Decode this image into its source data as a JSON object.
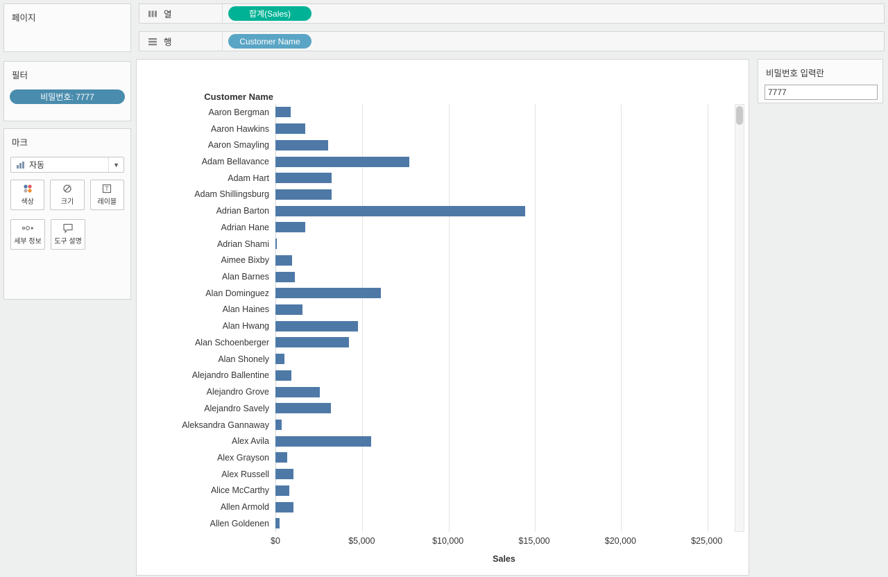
{
  "colors": {
    "measure_pill": "#00b295",
    "dimension_pill": "#5aa5c5",
    "filter_pill": "#4a8cad",
    "bar": "#4e79a7"
  },
  "pages_panel": {
    "title": "페이지"
  },
  "filters_panel": {
    "title": "필터",
    "pill_label": "비밀번호: 7777"
  },
  "marks_panel": {
    "title": "마크",
    "mark_type_label": "자동",
    "buttons": [
      {
        "label": "색상"
      },
      {
        "label": "크기"
      },
      {
        "label": "레이블"
      },
      {
        "label": "세부 정보"
      },
      {
        "label": "도구 설명"
      }
    ]
  },
  "shelves": {
    "columns_label": "열",
    "columns_pill": "합계(Sales)",
    "rows_label": "행",
    "rows_pill": "Customer Name"
  },
  "parameter_panel": {
    "title": "비밀번호 입력란",
    "value": "7777"
  },
  "chart_data": {
    "type": "bar",
    "orientation": "horizontal",
    "title": "Customer Name",
    "xlabel": "Sales",
    "x_ticks": [
      "$0",
      "$5,000",
      "$10,000",
      "$15,000",
      "$20,000",
      "$25,000"
    ],
    "x_tick_values": [
      0,
      5000,
      10000,
      15000,
      20000,
      25000
    ],
    "xlim": [
      0,
      26500
    ],
    "grid": true,
    "categories": [
      "Aaron Bergman",
      "Aaron Hawkins",
      "Aaron Smayling",
      "Adam Bellavance",
      "Adam Hart",
      "Adam Shillingsburg",
      "Adrian Barton",
      "Adrian Hane",
      "Adrian Shami",
      "Aimee Bixby",
      "Alan Barnes",
      "Alan Dominguez",
      "Alan Haines",
      "Alan Hwang",
      "Alan Schoenberger",
      "Alan Shonely",
      "Alejandro Ballentine",
      "Alejandro Grove",
      "Alejandro Savely",
      "Aleksandra Gannaway",
      "Alex Avila",
      "Alex Grayson",
      "Alex Russell",
      "Alice McCarthy",
      "Allen Armold",
      "Allen Goldenen"
    ],
    "values": [
      886,
      1745,
      3051,
      7756,
      3250,
      3255,
      14474,
      1736,
      59,
      967,
      1113,
      6107,
      1587,
      4805,
      4260,
      531,
      915,
      2583,
      3214,
      368,
      5564,
      699,
      1056,
      814,
      1056,
      254
    ]
  }
}
